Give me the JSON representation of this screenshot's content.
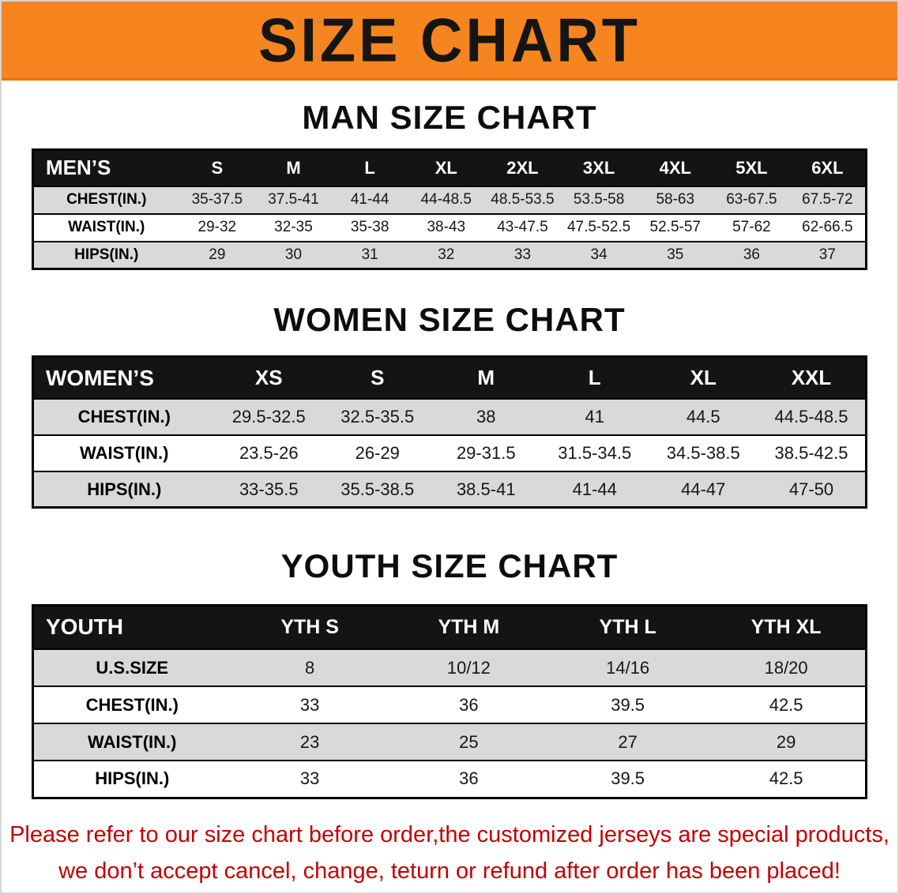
{
  "banner": {
    "title": "SIZE CHART"
  },
  "colors": {
    "banner_bg": "#f6851f",
    "table_header_bg": "#141414",
    "row_alt_gray": "#d9d9d9",
    "note_red": "#c40000"
  },
  "sections": {
    "men": {
      "heading": "MAN SIZE CHART",
      "table": {
        "header": [
          "MEN’S",
          "S",
          "M",
          "L",
          "XL",
          "2XL",
          "3XL",
          "4XL",
          "5XL",
          "6XL"
        ],
        "rows": [
          {
            "label": "CHEST(IN.)",
            "values": [
              "35-37.5",
              "37.5-41",
              "41-44",
              "44-48.5",
              "48.5-53.5",
              "53.5-58",
              "58-63",
              "63-67.5",
              "67.5-72"
            ]
          },
          {
            "label": "WAIST(IN.)",
            "values": [
              "29-32",
              "32-35",
              "35-38",
              "38-43",
              "43-47.5",
              "47.5-52.5",
              "52.5-57",
              "57-62",
              "62-66.5"
            ]
          },
          {
            "label": "HIPS(IN.)",
            "values": [
              "29",
              "30",
              "31",
              "32",
              "33",
              "34",
              "35",
              "36",
              "37"
            ]
          }
        ]
      }
    },
    "women": {
      "heading": "WOMEN SIZE CHART",
      "table": {
        "header": [
          "WOMEN’S",
          "XS",
          "S",
          "M",
          "L",
          "XL",
          "XXL"
        ],
        "rows": [
          {
            "label": "CHEST(IN.)",
            "values": [
              "29.5-32.5",
              "32.5-35.5",
              "38",
              "41",
              "44.5",
              "44.5-48.5"
            ]
          },
          {
            "label": "WAIST(IN.)",
            "values": [
              "23.5-26",
              "26-29",
              "29-31.5",
              "31.5-34.5",
              "34.5-38.5",
              "38.5-42.5"
            ]
          },
          {
            "label": "HIPS(IN.)",
            "values": [
              "33-35.5",
              "35.5-38.5",
              "38.5-41",
              "41-44",
              "44-47",
              "47-50"
            ]
          }
        ]
      }
    },
    "youth": {
      "heading": "YOUTH SIZE CHART",
      "table": {
        "header": [
          "YOUTH",
          "YTH S",
          "YTH M",
          "YTH L",
          "YTH XL"
        ],
        "rows": [
          {
            "label": "U.S.SIZE",
            "values": [
              "8",
              "10/12",
              "14/16",
              "18/20"
            ]
          },
          {
            "label": "CHEST(IN.)",
            "values": [
              "33",
              "36",
              "39.5",
              "42.5"
            ]
          },
          {
            "label": "WAIST(IN.)",
            "values": [
              "23",
              "25",
              "27",
              "29"
            ]
          },
          {
            "label": "HIPS(IN.)",
            "values": [
              "33",
              "36",
              "39.5",
              "42.5"
            ]
          }
        ]
      }
    }
  },
  "note": {
    "line1": "Please refer to our size chart before order,the customized jerseys are special products,",
    "line2": "we don’t accept cancel, change, teturn or refund after order has been placed!"
  }
}
